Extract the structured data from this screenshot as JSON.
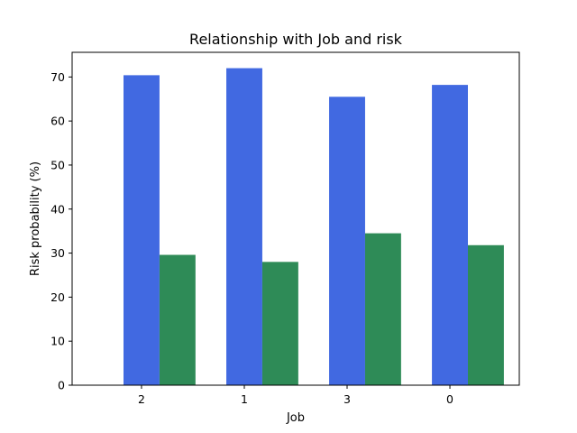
{
  "chart_data": {
    "type": "bar",
    "title": "Relationship with Job and risk",
    "xlabel": "Job",
    "ylabel": "Risk probability (%)",
    "categories": [
      "2",
      "1",
      "3",
      "0"
    ],
    "series": [
      {
        "color": "#4169e1",
        "values": [
          70.4,
          72.0,
          65.5,
          68.2
        ]
      },
      {
        "color": "#2e8b57",
        "values": [
          29.6,
          28.0,
          34.5,
          31.8
        ]
      }
    ],
    "ylim": [
      0,
      75.6
    ],
    "yticks": [
      0,
      10,
      20,
      30,
      40,
      50,
      60,
      70
    ],
    "grid": false,
    "legend": "none"
  }
}
